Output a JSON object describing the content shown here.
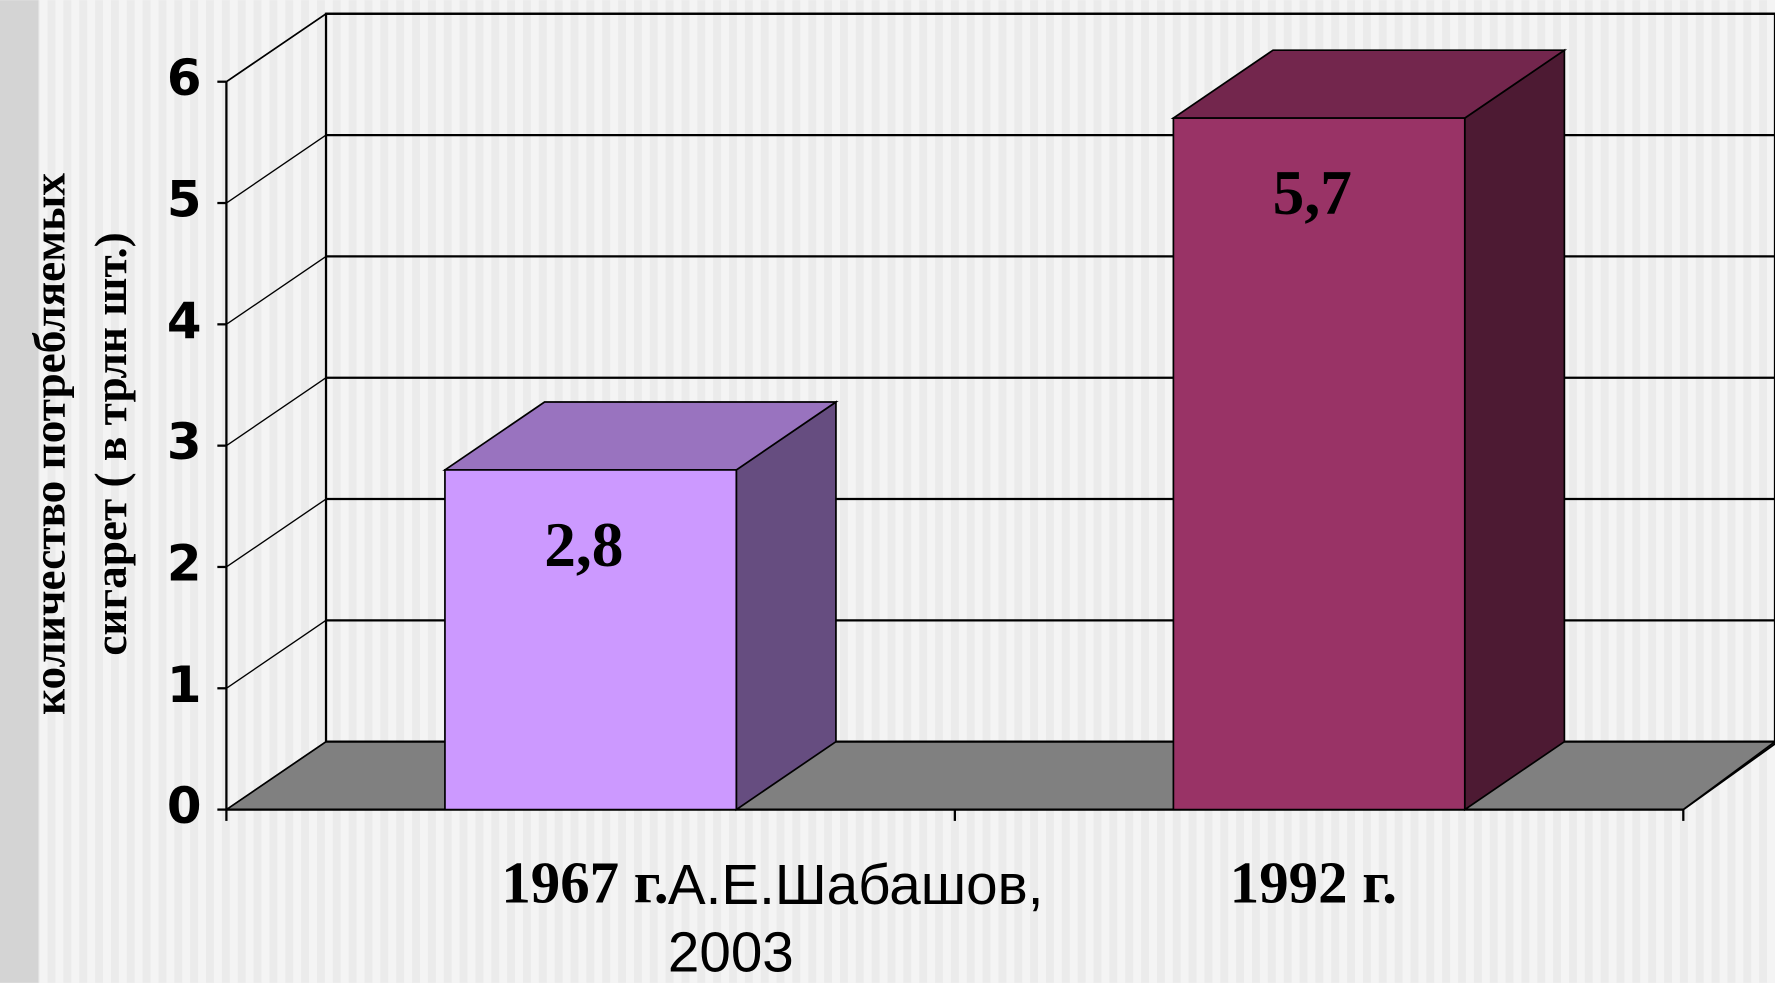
{
  "chart_data": {
    "type": "bar3d",
    "ylabel": [
      "количество потребляемых",
      "сигарет  ( в трлн шт.)"
    ],
    "categories": [
      "1967 г.",
      "1992 г."
    ],
    "values": [
      2.8,
      5.7
    ],
    "value_labels": [
      "2,8",
      "5,7"
    ],
    "colors": [
      "#cc99ff",
      "#993366"
    ],
    "ylim": [
      0,
      6
    ],
    "yticks": [
      0,
      1,
      2,
      3,
      4,
      5,
      6
    ],
    "grid": true,
    "annotation": [
      "А.Е.Шабашов,",
      "2003"
    ]
  }
}
